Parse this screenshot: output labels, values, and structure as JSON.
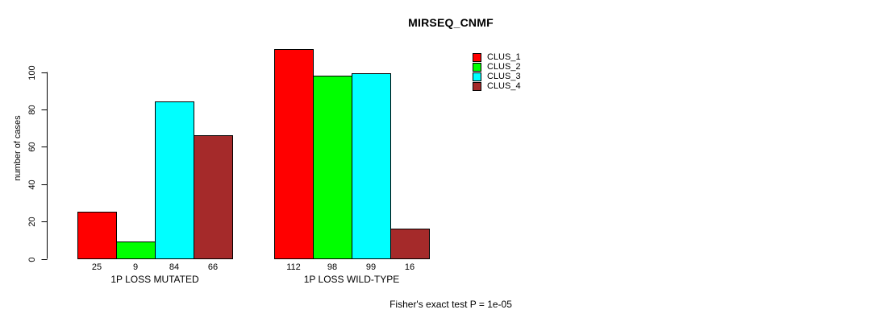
{
  "chart_data": {
    "type": "bar",
    "title": "MIRSEQ_CNMF",
    "ylabel": "number of cases",
    "xlabel": "",
    "footnote": "Fisher's exact test P = 1e-05",
    "categories": [
      "1P LOSS MUTATED",
      "1P LOSS WILD-TYPE"
    ],
    "series": [
      {
        "name": "CLUS_1",
        "color": "#FF0000",
        "values": [
          25,
          112
        ]
      },
      {
        "name": "CLUS_2",
        "color": "#00FF00",
        "values": [
          9,
          98
        ]
      },
      {
        "name": "CLUS_3",
        "color": "#00FFFF",
        "values": [
          84,
          99
        ]
      },
      {
        "name": "CLUS_4",
        "color": "#A52A2A",
        "values": [
          66,
          16
        ]
      }
    ],
    "yticks": [
      0,
      20,
      40,
      60,
      80,
      100
    ],
    "ylim": [
      0,
      116
    ],
    "grid": false,
    "bar_value_labels_shown": true,
    "legend_position": "upper-right",
    "axis_color": "#000000",
    "text_color": "#000000",
    "background_color": "#FFFFFF"
  }
}
